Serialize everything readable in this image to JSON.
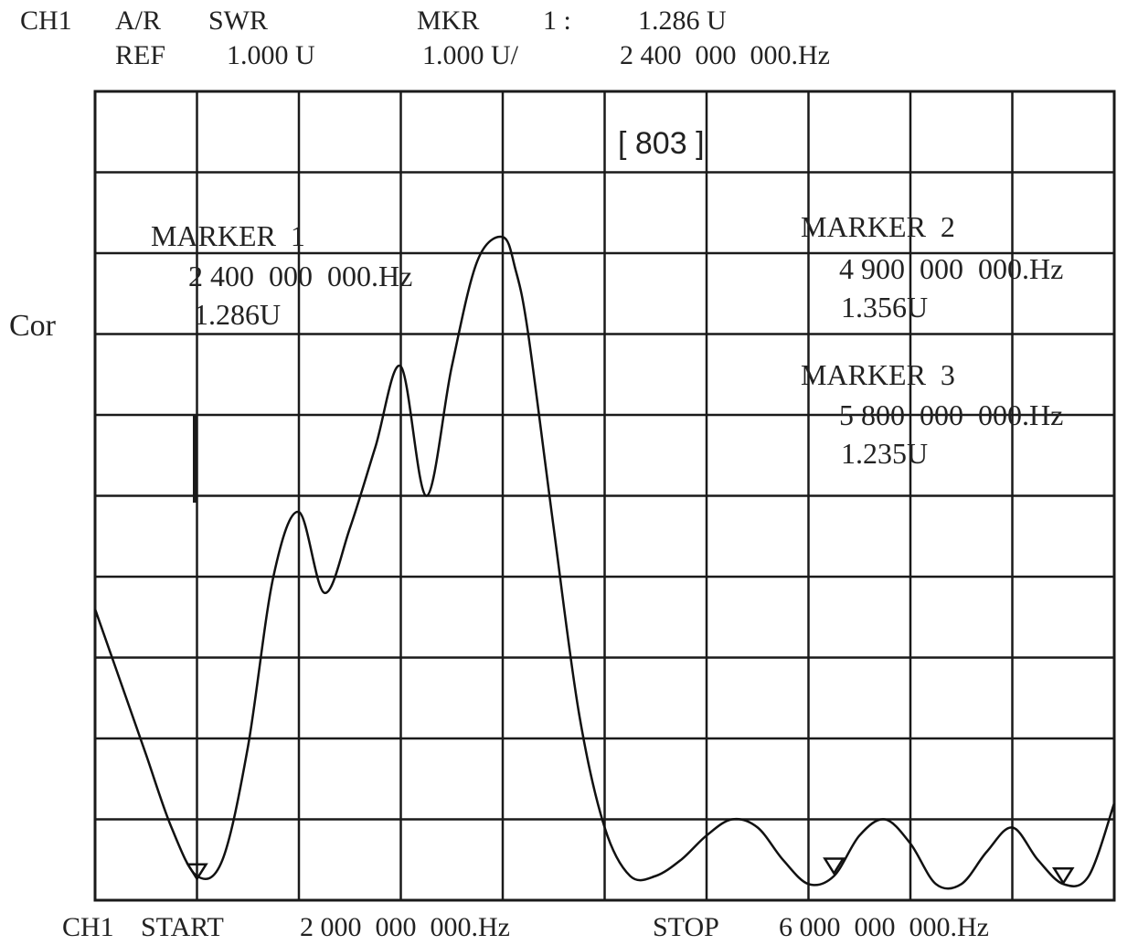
{
  "header": {
    "channel": "CH1",
    "mode": "A/R",
    "format": "SWR",
    "mkr_label": "MKR",
    "mkr_number": "1 :",
    "mkr_value": "1.286 U",
    "ref_label": "REF",
    "ref_value": "1.000 U",
    "scale": "1.000 U/",
    "mkr_freq": "2 400  000  000.Hz"
  },
  "side_label": "Cor",
  "points_label": "[ 803 ]",
  "markers": [
    {
      "title": "MARKER  1",
      "freq": "2 400  000  000.Hz",
      "value": "1.286U",
      "x_hz": 2400000000,
      "y": 1.286
    },
    {
      "title": "MARKER  2",
      "freq": "4 900  000  000.Hz",
      "value": "1.356U",
      "x_hz": 4900000000,
      "y": 1.356
    },
    {
      "title": "MARKER  3",
      "freq": "5 800  000  000.Hz",
      "value": "1.235U",
      "x_hz": 5800000000,
      "y": 1.235
    }
  ],
  "footer": {
    "channel": "CH1",
    "start_label": "START",
    "start_value": "2 000  000  000.Hz",
    "stop_label": "STOP",
    "stop_value": "6 000  000  000.Hz"
  },
  "colors": {
    "trace": "#111111",
    "grid": "#1a1a1a",
    "background": "#ffffff"
  },
  "chart_data": {
    "type": "line",
    "title": "",
    "xlabel": "",
    "ylabel": "Cor",
    "xlim": [
      2000000000,
      6000000000
    ],
    "ylim": [
      1.0,
      11.0
    ],
    "grid": true,
    "series": [
      {
        "x": [
          2000000000,
          2100000000,
          2200000000,
          2300000000,
          2400000000,
          2500000000,
          2600000000,
          2700000000,
          2800000000,
          2900000000,
          3000000000,
          3100000000,
          3200000000,
          3300000000,
          3400000000,
          3500000000,
          3600000000,
          3650000000,
          3700000000,
          3800000000,
          3900000000,
          4000000000,
          4100000000,
          4200000000,
          4300000000,
          4400000000,
          4500000000,
          4600000000,
          4700000000,
          4800000000,
          4900000000,
          5000000000,
          5100000000,
          5200000000,
          5300000000,
          5400000000,
          5500000000,
          5600000000,
          5700000000,
          5800000000,
          5900000000,
          6000000000
        ],
        "y": [
          4.6,
          3.7,
          2.8,
          1.9,
          1.3,
          1.5,
          2.9,
          5.0,
          5.8,
          4.8,
          5.6,
          6.6,
          7.6,
          6.0,
          7.6,
          8.9,
          9.2,
          8.8,
          8.0,
          5.6,
          3.3,
          1.9,
          1.3,
          1.3,
          1.5,
          1.8,
          2.0,
          1.9,
          1.5,
          1.2,
          1.3,
          1.8,
          2.0,
          1.7,
          1.2,
          1.2,
          1.6,
          1.9,
          1.5,
          1.2,
          1.3,
          2.2
        ]
      }
    ]
  }
}
